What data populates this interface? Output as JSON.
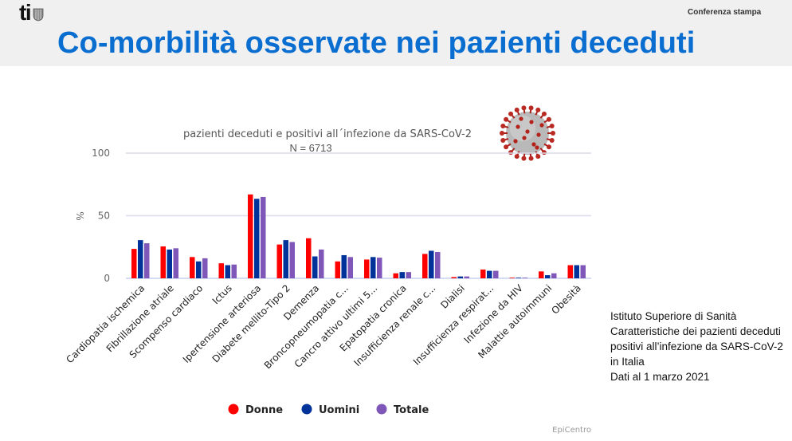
{
  "header": {
    "logo_text": "ti",
    "press_label": "Conferenza stampa",
    "title": "Co-morbilità osservate nei pazienti deceduti"
  },
  "colors": {
    "title_blue": "#0a6ed1",
    "donne": "#ff0000",
    "uomini": "#003399",
    "totale": "#7e57b8",
    "gridline": "#dcdcec"
  },
  "chart_data": {
    "type": "bar",
    "title": "pazienti deceduti e positivi all´infezione da SARS-CoV-2",
    "subtitle": "N = 6713",
    "xlabel": "",
    "ylabel": "%",
    "ylim": [
      0,
      100
    ],
    "yticks": [
      0,
      50,
      100
    ],
    "grid": true,
    "legend_position": "bottom",
    "categories": [
      "Cardiopatia ischemica",
      "Fibrillazione atriale",
      "Scompenso cardiaco",
      "Ictus",
      "Ipertensione arteriosa",
      "Diabete mellito-Tipo 2",
      "Demenza",
      "Broncopneumopatia c...",
      "Cancro attivo ultimi 5...",
      "Epatopatia cronica",
      "Insufficienza renale c...",
      "Dialisi",
      "Insufficienza respirat...",
      "Infezione da HIV",
      "Malattie autoimmuni",
      "Obesità"
    ],
    "series": [
      {
        "name": "Donne",
        "color": "#ff0000",
        "values": [
          23.5,
          25.5,
          17,
          12,
          67,
          27,
          32,
          13.5,
          15,
          4,
          19.5,
          1,
          7,
          0.1,
          5.5,
          10.5
        ]
      },
      {
        "name": "Uomini",
        "color": "#003399",
        "values": [
          30.5,
          23,
          13.5,
          10.5,
          63.5,
          30.5,
          17.5,
          18.5,
          17,
          5,
          22,
          1.5,
          6,
          0.2,
          2.5,
          10.5
        ]
      },
      {
        "name": "Totale",
        "color": "#7e57b8",
        "values": [
          28,
          24,
          16,
          11,
          65,
          29,
          23,
          17,
          16.5,
          5,
          21,
          1.5,
          6,
          0.2,
          4,
          10.5
        ]
      }
    ]
  },
  "credit": "EpiCentro",
  "source_note": [
    "Istituto Superiore di Sanità",
    "Caratteristiche dei pazienti deceduti",
    "positivi all’infezione da SARS-CoV-2",
    "in Italia",
    "Dati al 1 marzo 2021"
  ],
  "illustration": "coronavirus-icon"
}
